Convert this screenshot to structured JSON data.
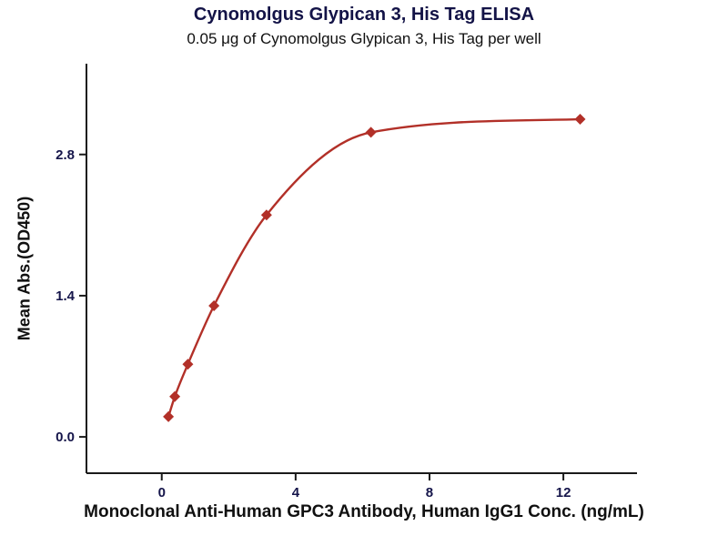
{
  "chart_data": {
    "type": "scatter",
    "title": "Cynomolgus Glypican 3, His Tag ELISA",
    "subtitle": "0.05 μg of Cynomolgus Glypican 3, His Tag per well",
    "xlabel": "Monoclonal Anti-Human GPC3 Antibody, Human IgG1 Conc. (ng/mL)",
    "ylabel": "Mean Abs.(OD450)",
    "x": [
      0.2,
      0.39,
      0.78,
      1.56,
      3.13,
      6.25,
      12.5
    ],
    "y": [
      0.2,
      0.4,
      0.72,
      1.3,
      2.2,
      3.02,
      3.15
    ],
    "x_ticks": [
      0,
      4,
      8,
      12
    ],
    "y_ticks": [
      0.0,
      1.4,
      2.8
    ],
    "xlim": [
      -2.25,
      14.2
    ],
    "ylim": [
      -0.36,
      3.7
    ],
    "grid": "off",
    "legend": "none",
    "marker": "diamond",
    "fit": "smooth sigmoidal curve through points",
    "series_color": "#b23028",
    "axis_color": "#1a1a1a",
    "tick_text_color": "#15154a"
  }
}
